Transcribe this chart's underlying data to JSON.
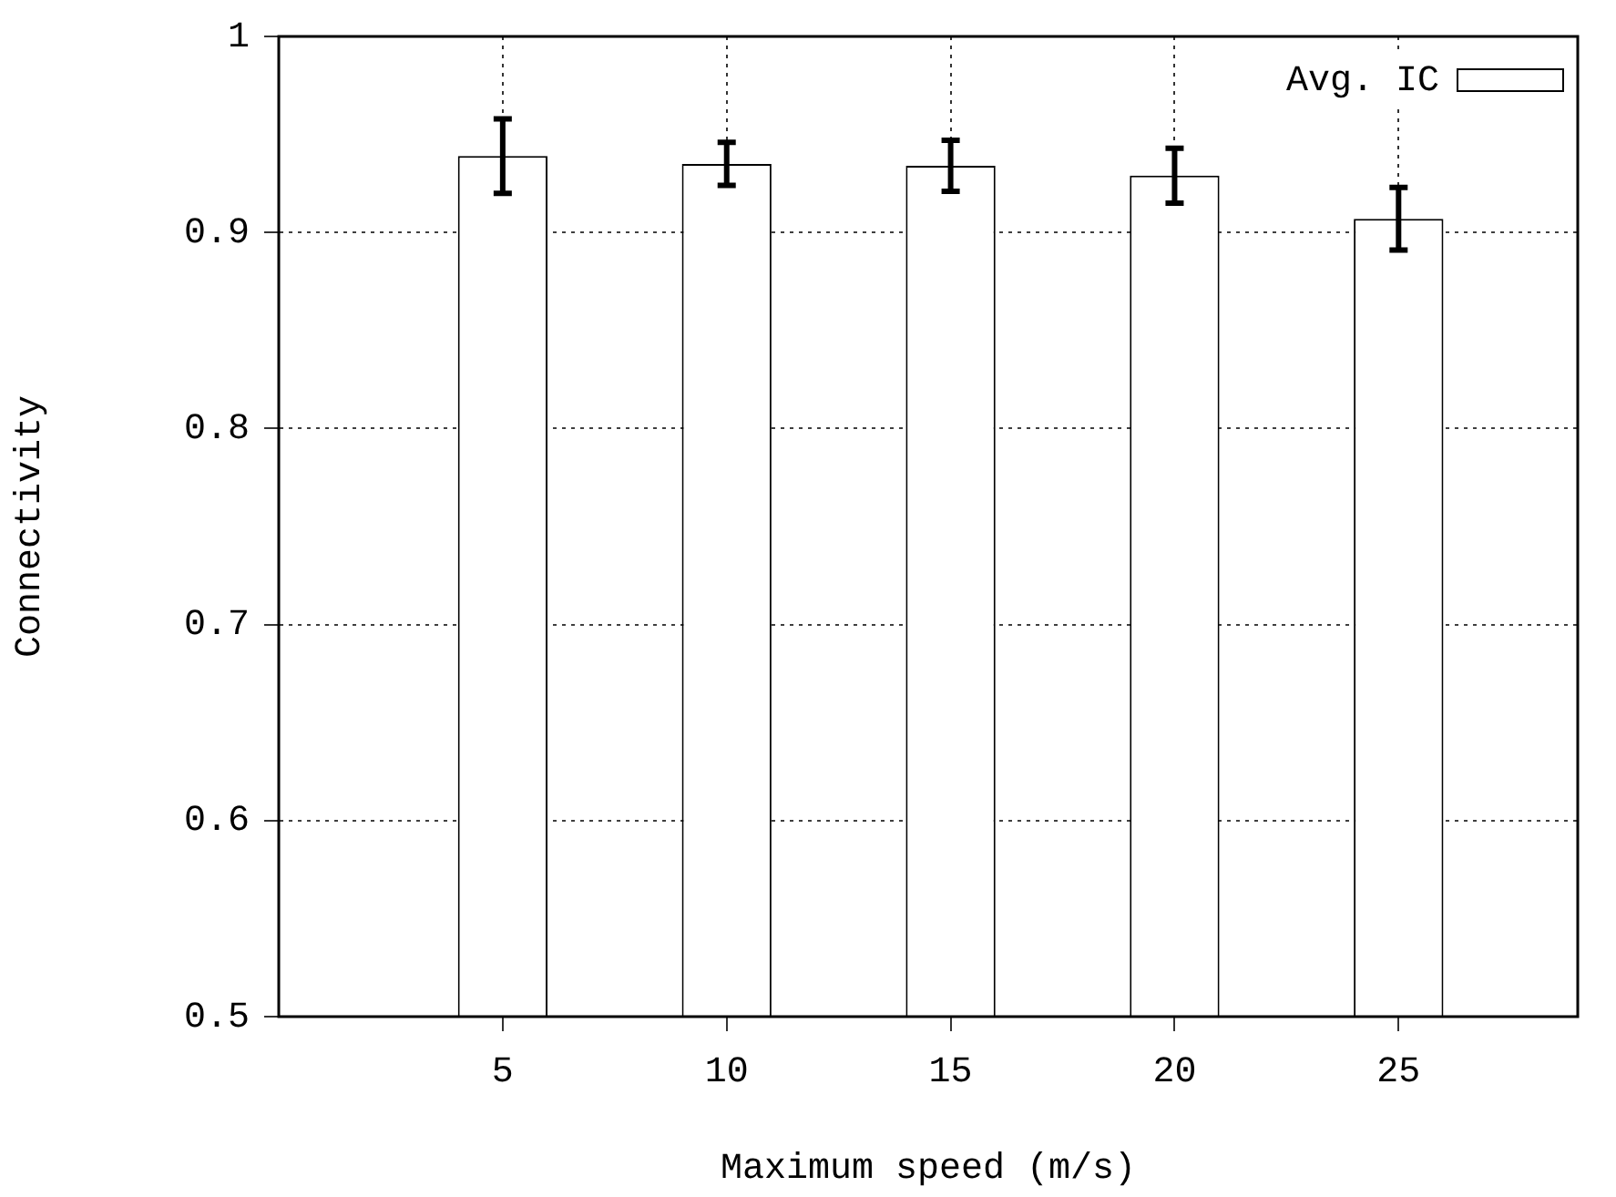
{
  "chart_data": {
    "type": "bar",
    "xlabel": "Maximum speed (m/s)",
    "ylabel": "Connectivity",
    "x": [
      5,
      10,
      15,
      20,
      25
    ],
    "series": [
      {
        "name": "Avg. IC",
        "color": "#ffffff",
        "values": [
          0.939,
          0.935,
          0.934,
          0.929,
          0.907
        ],
        "errors": [
          0.019,
          0.011,
          0.013,
          0.014,
          0.016
        ]
      }
    ],
    "xlim": [
      0,
      29
    ],
    "xticks": [
      5,
      10,
      15,
      20,
      25
    ],
    "ylim": [
      0.5,
      1
    ],
    "yticks": [
      0.5,
      0.6,
      0.7,
      0.8,
      0.9,
      1
    ],
    "grid": true,
    "legend": "top right"
  }
}
